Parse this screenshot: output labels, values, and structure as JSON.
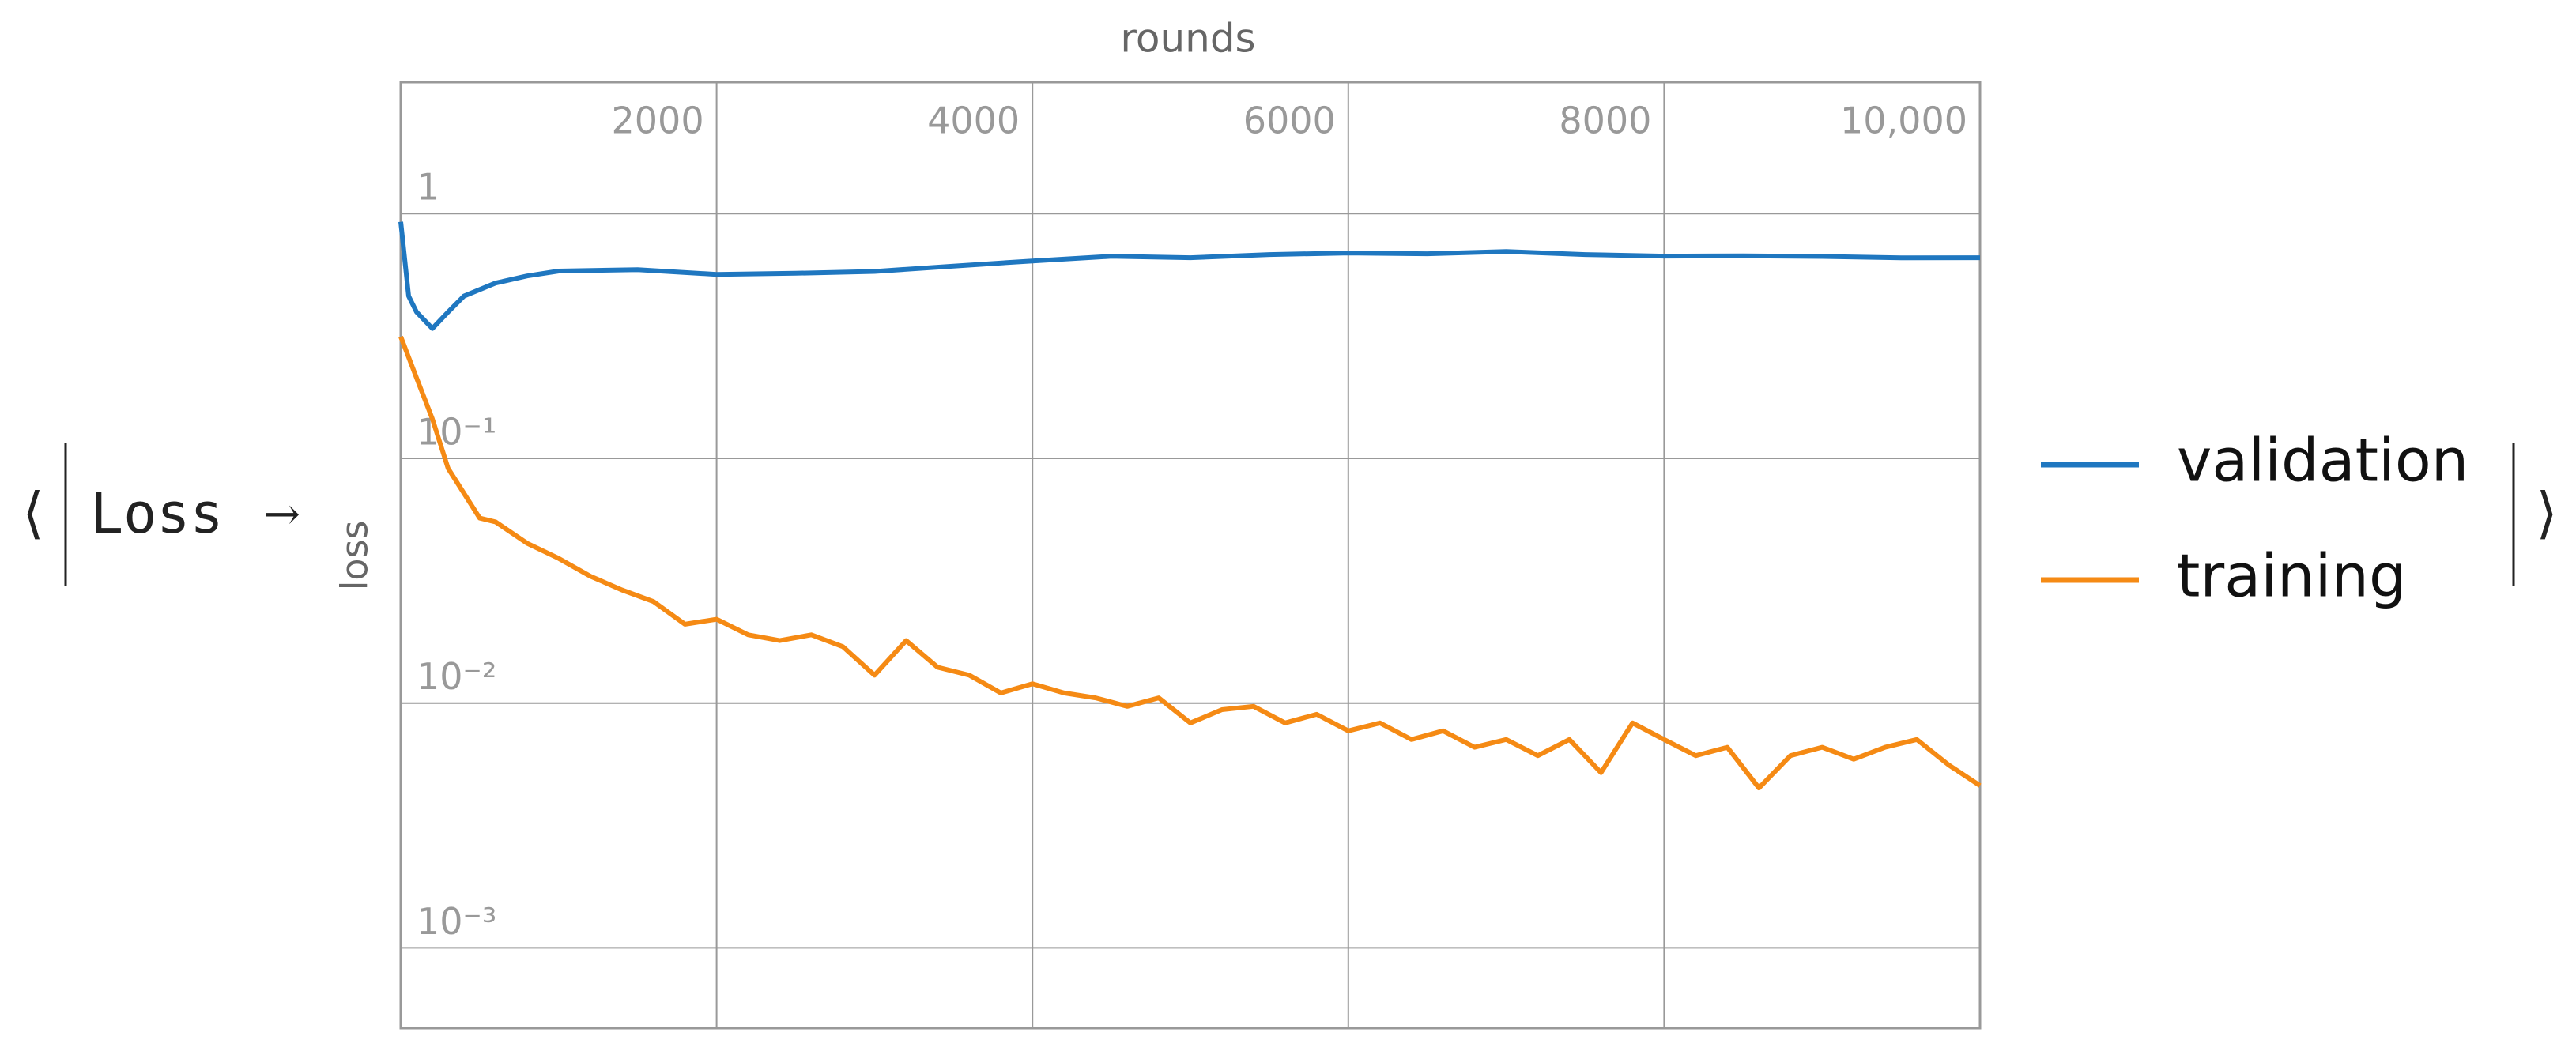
{
  "association_key": "Loss",
  "chart_data": {
    "type": "line",
    "x_label": "rounds",
    "y_label": "loss",
    "xlim": [
      0,
      10000
    ],
    "ylim": [
      0.00047,
      3.44
    ],
    "log_y": true,
    "grid": true,
    "legend": "right",
    "xticks": [
      2000,
      4000,
      6000,
      8000,
      {
        "value": 10000,
        "label": "10,000"
      }
    ],
    "yticks": [
      1,
      {
        "value": 0.1,
        "label": "10⁻¹"
      },
      {
        "value": 0.01,
        "label": "10⁻²"
      },
      {
        "value": 0.001,
        "label": "10⁻³"
      }
    ],
    "series": [
      {
        "name": "validation",
        "color": "#1f77c0",
        "x": [
          0,
          50,
          100,
          200,
          300,
          400,
          600,
          800,
          1000,
          1500,
          2000,
          2500,
          3000,
          3500,
          4000,
          4500,
          5000,
          5500,
          6000,
          6500,
          7000,
          7500,
          8000,
          8500,
          9000,
          9500,
          10000
        ],
        "values": [
          0.925,
          0.46,
          0.396,
          0.339,
          0.396,
          0.46,
          0.52,
          0.556,
          0.582,
          0.59,
          0.564,
          0.57,
          0.58,
          0.61,
          0.64,
          0.669,
          0.66,
          0.68,
          0.69,
          0.685,
          0.7,
          0.68,
          0.67,
          0.672,
          0.668,
          0.659,
          0.66
        ]
      },
      {
        "name": "training",
        "color": "#f58a14",
        "x": [
          0,
          100,
          200,
          300,
          400,
          500,
          600,
          800,
          1000,
          1200,
          1400,
          1600,
          1800,
          2000,
          2200,
          2400,
          2600,
          2800,
          3000,
          3200,
          3400,
          3600,
          3800,
          4000,
          4200,
          4400,
          4600,
          4800,
          5000,
          5200,
          5400,
          5600,
          5800,
          6000,
          6200,
          6400,
          6600,
          6800,
          7000,
          7200,
          7400,
          7600,
          7800,
          8000,
          8200,
          8400,
          8600,
          8800,
          9000,
          9200,
          9400,
          9600,
          9800,
          10000
        ],
        "values": [
          0.314,
          0.213,
          0.145,
          0.091,
          0.072,
          0.057,
          0.055,
          0.045,
          0.039,
          0.033,
          0.029,
          0.026,
          0.021,
          0.022,
          0.019,
          0.018,
          0.019,
          0.017,
          0.013,
          0.018,
          0.014,
          0.013,
          0.011,
          0.012,
          0.011,
          0.0105,
          0.0097,
          0.0105,
          0.0083,
          0.0094,
          0.0097,
          0.0083,
          0.009,
          0.0077,
          0.0083,
          0.0071,
          0.0077,
          0.0066,
          0.0071,
          0.0061,
          0.0071,
          0.0052,
          0.0083,
          0.0071,
          0.0061,
          0.0066,
          0.0045,
          0.0061,
          0.0066,
          0.0059,
          0.0066,
          0.0071,
          0.0056,
          0.0046
        ]
      }
    ]
  }
}
